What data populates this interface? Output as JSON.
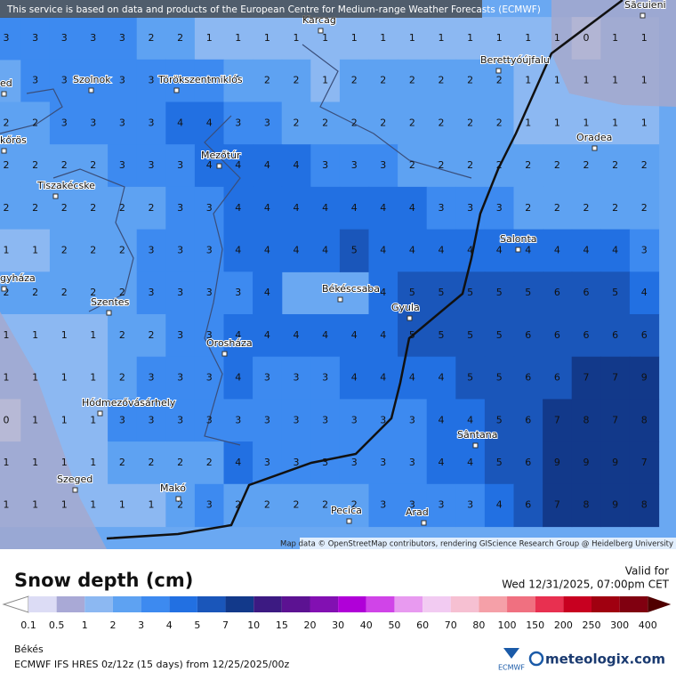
{
  "header": {
    "notice": "This service is based on data and products of the European Centre for Medium-range Weather Forecasts (ECMWF)"
  },
  "map": {
    "attribution": "Map data © OpenStreetMap contributors, rendering GIScience Research Group @ Heidelberg University",
    "places": [
      {
        "label": "Karcag"
      },
      {
        "label": "Berettyóújfalu"
      },
      {
        "label": "Szolnok"
      },
      {
        "label": "Törökszentmiklós"
      },
      {
        "label": "kőrös"
      },
      {
        "label": "Mezőtúr"
      },
      {
        "label": "Oradea"
      },
      {
        "label": "Tiszakécske"
      },
      {
        "label": "Salonta"
      },
      {
        "label": "gyháza"
      },
      {
        "label": "Békéscsaba"
      },
      {
        "label": "Szentes"
      },
      {
        "label": "Gyula"
      },
      {
        "label": "Orosháza"
      },
      {
        "label": "Hódmezővásárhely"
      },
      {
        "label": "Sântana"
      },
      {
        "label": "Szeged"
      },
      {
        "label": "Makó"
      },
      {
        "label": "Pecica"
      },
      {
        "label": "Arad"
      },
      {
        "label": "Săcuieni"
      },
      {
        "label": "ed"
      }
    ],
    "grid": [
      [
        3,
        3,
        3,
        3,
        3,
        2,
        2,
        1,
        1,
        1,
        1,
        1,
        1,
        1,
        1,
        1,
        1,
        1,
        1,
        1,
        0,
        1,
        1
      ],
      [
        null,
        3,
        3,
        3,
        3,
        3,
        3,
        3,
        2,
        2,
        2,
        1,
        2,
        2,
        2,
        2,
        2,
        2,
        1,
        1,
        1,
        1,
        1
      ],
      [
        2,
        2,
        3,
        3,
        3,
        3,
        4,
        4,
        3,
        3,
        2,
        2,
        2,
        2,
        2,
        2,
        2,
        2,
        1,
        1,
        1,
        1,
        1
      ],
      [
        2,
        2,
        2,
        2,
        3,
        3,
        3,
        4,
        4,
        4,
        4,
        3,
        3,
        3,
        2,
        2,
        2,
        2,
        2,
        2,
        2,
        2,
        2
      ],
      [
        2,
        2,
        2,
        2,
        2,
        2,
        3,
        3,
        4,
        4,
        4,
        4,
        4,
        4,
        4,
        3,
        3,
        3,
        2,
        2,
        2,
        2,
        2
      ],
      [
        1,
        1,
        2,
        2,
        2,
        3,
        3,
        3,
        4,
        4,
        4,
        4,
        5,
        4,
        4,
        4,
        4,
        4,
        4,
        4,
        4,
        4,
        3
      ],
      [
        2,
        2,
        2,
        2,
        2,
        3,
        3,
        3,
        3,
        4,
        null,
        null,
        null,
        4,
        5,
        5,
        5,
        5,
        5,
        6,
        6,
        5,
        4
      ],
      [
        1,
        1,
        1,
        1,
        2,
        2,
        3,
        3,
        4,
        4,
        4,
        4,
        4,
        4,
        5,
        5,
        5,
        5,
        6,
        6,
        6,
        6,
        6
      ],
      [
        1,
        1,
        1,
        1,
        2,
        3,
        3,
        3,
        4,
        3,
        3,
        3,
        4,
        4,
        4,
        4,
        5,
        5,
        6,
        6,
        7,
        7,
        9
      ],
      [
        0,
        1,
        1,
        1,
        3,
        3,
        3,
        3,
        3,
        3,
        3,
        3,
        3,
        3,
        3,
        4,
        4,
        5,
        6,
        7,
        8,
        7,
        8
      ],
      [
        1,
        1,
        1,
        1,
        2,
        2,
        2,
        2,
        4,
        3,
        3,
        3,
        3,
        3,
        3,
        4,
        4,
        5,
        6,
        9,
        9,
        9,
        7
      ],
      [
        1,
        1,
        1,
        1,
        1,
        1,
        2,
        3,
        2,
        2,
        2,
        2,
        2,
        3,
        3,
        3,
        3,
        4,
        6,
        7,
        8,
        9,
        8
      ]
    ]
  },
  "legend": {
    "title": "Snow depth (cm)",
    "valid_label": "Valid for",
    "valid_time": "Wed 12/31/2025, 07:00pm CET",
    "levels": [
      0.1,
      0.5,
      1,
      2,
      3,
      4,
      5,
      7,
      10,
      15,
      20,
      30,
      40,
      50,
      60,
      70,
      80,
      100,
      150,
      200,
      250,
      300,
      400
    ],
    "colors": [
      "#dcdcf5",
      "#a9a9d6",
      "#8cb8f2",
      "#5ea2f2",
      "#3d8af0",
      "#2270e2",
      "#1a56ba",
      "#12398a",
      "#3c1a82",
      "#5c1292",
      "#8210b2",
      "#b000d8",
      "#d044e8",
      "#e89af0",
      "#f2cbf2",
      "#f6c0d2",
      "#f5a0a8",
      "#f07080",
      "#e83050",
      "#c80020",
      "#a00010",
      "#800010"
    ],
    "under_color": "#ffffff",
    "over_color": "#500000"
  },
  "footer": {
    "region": "Békés",
    "model": "ECMWF IFS HRES 0z/12z (15 days) from  12/25/2025/00z",
    "ecmwf": "ECMWF",
    "brand": "meteologix.com"
  }
}
